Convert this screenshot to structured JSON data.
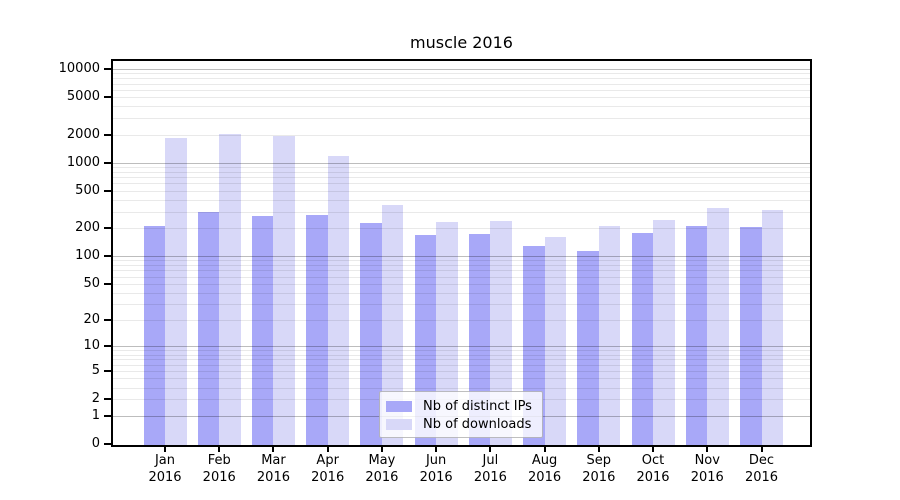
{
  "chart_data": {
    "type": "bar",
    "title": "muscle 2016",
    "categories": [
      "Jan 2016",
      "Feb 2016",
      "Mar 2016",
      "Apr 2016",
      "May 2016",
      "Jun 2016",
      "Jul 2016",
      "Aug 2016",
      "Sep 2016",
      "Oct 2016",
      "Nov 2016",
      "Dec 2016"
    ],
    "series": [
      {
        "key": "distinct-ips",
        "name": "Nb of distinct IPs",
        "color": "#a8a8f8",
        "values": [
          210,
          300,
          268,
          276,
          228,
          168,
          174,
          130,
          113,
          177,
          212,
          204
        ]
      },
      {
        "key": "downloads",
        "name": "Nb of downloads",
        "color": "#d8d8f8",
        "values": [
          1850,
          2040,
          1940,
          1190,
          350,
          232,
          240,
          160,
          212,
          246,
          332,
          310
        ]
      }
    ],
    "xlabel": "",
    "ylabel": "",
    "yscale": "log1p",
    "ylim": [
      0,
      10000
    ],
    "yticks": [
      0,
      1,
      2,
      5,
      10,
      20,
      50,
      100,
      200,
      500,
      1000,
      2000,
      5000,
      10000
    ],
    "grid": true,
    "legend_position": "lower center"
  },
  "style_colors": {
    "background": "#ffffff",
    "spine": "#000000",
    "text": "#000000",
    "major_grid": "#bbbbbb",
    "minor_grid": "#e8e8e8"
  }
}
